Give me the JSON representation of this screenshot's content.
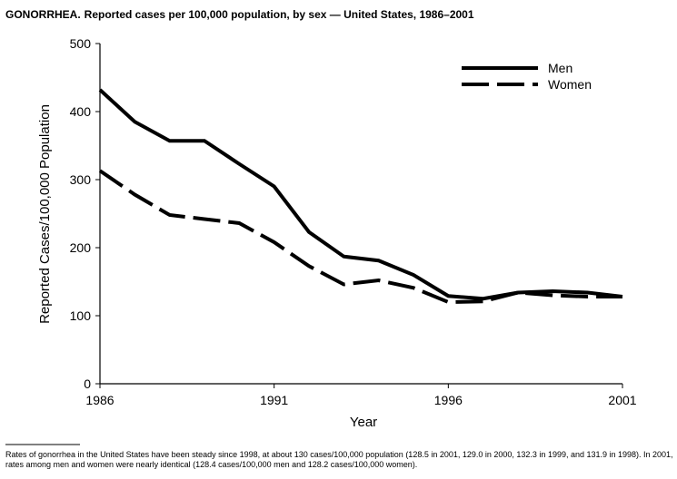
{
  "chart_data": {
    "type": "line",
    "title_bold": "GONORRHEA.",
    "title": "Reported cases per 100,000 population, by sex — United States, 1986–2001",
    "x_label": "Year",
    "y_label": "Reported Cases/100,000 Population",
    "x": [
      1986,
      1987,
      1988,
      1989,
      1990,
      1991,
      1992,
      1993,
      1994,
      1995,
      1996,
      1997,
      1998,
      1999,
      2000,
      2001
    ],
    "series": [
      {
        "name": "Men",
        "color": "#000000",
        "dash": "solid",
        "values": [
          432,
          385,
          357,
          357,
          323,
          290,
          223,
          187,
          181,
          160,
          129,
          125,
          134,
          136,
          134,
          128
        ]
      },
      {
        "name": "Women",
        "color": "#000000",
        "dash": "dashed",
        "values": [
          313,
          278,
          248,
          242,
          236,
          208,
          173,
          146,
          152,
          141,
          120,
          121,
          134,
          130,
          128,
          128
        ]
      }
    ],
    "xlim": [
      1986,
      2001
    ],
    "xticks": [
      1986,
      1991,
      1996,
      2001
    ],
    "ylim": [
      0,
      500
    ],
    "yticks": [
      0,
      100,
      200,
      300,
      400,
      500
    ],
    "legend": "top-right",
    "footnote": "Rates of gonorrhea in the United States have been steady since 1998, at about 130 cases/100,000 population (128.5 in 2001, 129.0 in 2000, 132.3 in 1999, and 131.9 in 1998). In 2001, rates among men and women were nearly identical (128.4 cases/100,000 men and 128.2 cases/100,000 women)."
  }
}
